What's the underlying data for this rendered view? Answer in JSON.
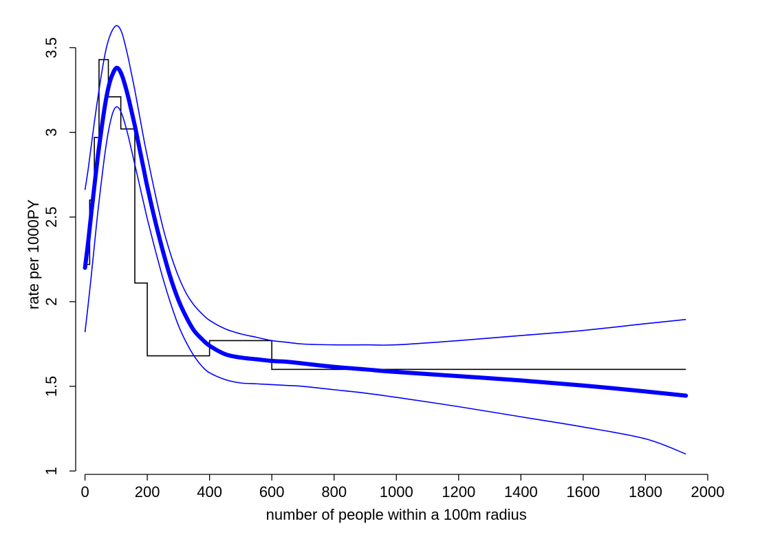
{
  "chart_data": {
    "type": "line",
    "xlabel": "number of people within a 100m radius",
    "ylabel": "rate per 1000PY",
    "xlim": [
      -30,
      2040
    ],
    "ylim": [
      0.98,
      3.66
    ],
    "x_ticks": [
      0,
      200,
      400,
      600,
      800,
      1000,
      1200,
      1400,
      1600,
      1800,
      2000
    ],
    "y_ticks": [
      1,
      1.5,
      2,
      2.5,
      3,
      3.5
    ],
    "y_tick_labels": [
      "1",
      "1.5",
      "2",
      "2.5",
      "3",
      "3.5"
    ],
    "grid": false,
    "colors": {
      "fit": "#0000ff",
      "ci": "#0000ff",
      "step": "#000000"
    },
    "series": [
      {
        "style": "thick",
        "x": [
          0,
          10,
          20,
          30,
          40,
          50,
          60,
          70,
          80,
          90,
          100,
          110,
          120,
          130,
          140,
          150,
          160,
          170,
          180,
          190,
          200,
          225,
          250,
          275,
          300,
          325,
          350,
          375,
          400,
          450,
          500,
          550,
          600,
          650,
          700,
          800,
          900,
          1000,
          1200,
          1400,
          1600,
          1800,
          1930
        ],
        "values": [
          2.2,
          2.35,
          2.52,
          2.68,
          2.84,
          2.98,
          3.11,
          3.22,
          3.3,
          3.35,
          3.38,
          3.37,
          3.33,
          3.27,
          3.2,
          3.12,
          3.04,
          2.95,
          2.86,
          2.77,
          2.68,
          2.48,
          2.3,
          2.14,
          2.01,
          1.91,
          1.83,
          1.78,
          1.74,
          1.69,
          1.67,
          1.66,
          1.65,
          1.645,
          1.635,
          1.615,
          1.6,
          1.585,
          1.56,
          1.535,
          1.505,
          1.47,
          1.445
        ]
      },
      {
        "style": "thin",
        "x": [
          0,
          10,
          20,
          30,
          40,
          50,
          60,
          70,
          80,
          90,
          100,
          110,
          120,
          130,
          140,
          150,
          160,
          170,
          180,
          190,
          200,
          225,
          250,
          275,
          300,
          325,
          350,
          375,
          400,
          450,
          500,
          550,
          600,
          650,
          700,
          800,
          900,
          1000,
          1200,
          1400,
          1600,
          1800,
          1930
        ],
        "values": [
          2.66,
          2.78,
          2.92,
          3.06,
          3.19,
          3.31,
          3.42,
          3.51,
          3.57,
          3.61,
          3.63,
          3.62,
          3.58,
          3.51,
          3.43,
          3.34,
          3.25,
          3.15,
          3.05,
          2.95,
          2.86,
          2.64,
          2.44,
          2.28,
          2.15,
          2.05,
          1.98,
          1.93,
          1.89,
          1.84,
          1.81,
          1.79,
          1.77,
          1.76,
          1.75,
          1.745,
          1.745,
          1.745,
          1.77,
          1.8,
          1.83,
          1.87,
          1.895
        ]
      },
      {
        "style": "thin",
        "x": [
          0,
          10,
          20,
          30,
          40,
          50,
          60,
          70,
          80,
          90,
          100,
          110,
          120,
          130,
          140,
          150,
          160,
          170,
          180,
          190,
          200,
          225,
          250,
          275,
          300,
          325,
          350,
          375,
          400,
          450,
          500,
          550,
          600,
          650,
          700,
          800,
          900,
          1000,
          1200,
          1400,
          1600,
          1800,
          1930
        ],
        "values": [
          1.82,
          1.98,
          2.15,
          2.33,
          2.51,
          2.67,
          2.82,
          2.95,
          3.05,
          3.12,
          3.15,
          3.14,
          3.1,
          3.04,
          2.97,
          2.89,
          2.81,
          2.73,
          2.65,
          2.57,
          2.49,
          2.31,
          2.14,
          1.99,
          1.86,
          1.76,
          1.68,
          1.62,
          1.58,
          1.54,
          1.52,
          1.515,
          1.51,
          1.505,
          1.5,
          1.48,
          1.46,
          1.435,
          1.38,
          1.32,
          1.26,
          1.19,
          1.1
        ]
      },
      {
        "style": "step",
        "x": [
          0,
          15,
          30,
          45,
          75,
          115,
          160,
          200,
          400,
          600,
          800,
          1930
        ],
        "values": [
          2.22,
          2.6,
          2.97,
          3.43,
          3.21,
          3.02,
          2.11,
          1.68,
          1.77,
          1.6,
          1.6,
          1.6
        ]
      }
    ]
  }
}
